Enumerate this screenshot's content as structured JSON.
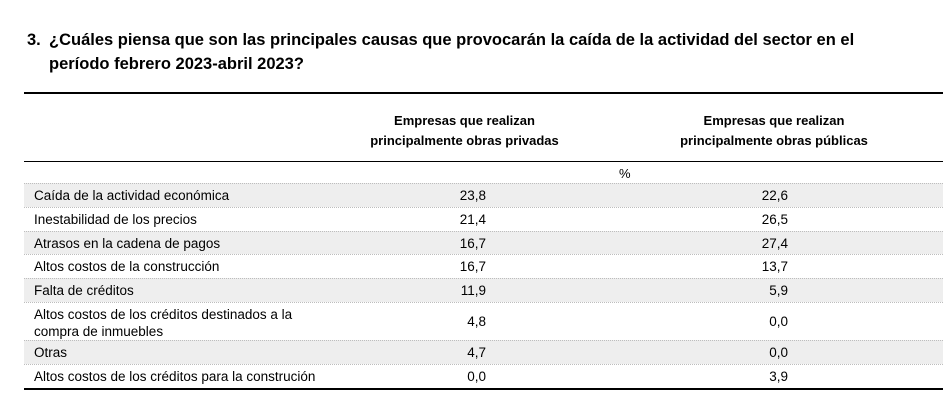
{
  "question": {
    "number": "3.",
    "line1": "¿Cuáles piensa que son las principales causas que provocarán la caída de la actividad del sector en el",
    "line2": "período febrero 2023-abril 2023?"
  },
  "table": {
    "columns": [
      {
        "line1": "Empresas que realizan",
        "line2": "principalmente obras privadas"
      },
      {
        "line1": "Empresas que realizan",
        "line2": "principalmente obras públicas"
      }
    ],
    "unit": "%",
    "rows": [
      {
        "label": "Caída de la actividad económica",
        "privadas": "23,8",
        "publicas": "22,6"
      },
      {
        "label": "Inestabilidad de los precios",
        "privadas": "21,4",
        "publicas": "26,5"
      },
      {
        "label": "Atrasos en la cadena de pagos",
        "privadas": "16,7",
        "publicas": "27,4"
      },
      {
        "label": "Altos costos de la construcción",
        "privadas": "16,7",
        "publicas": "13,7"
      },
      {
        "label": "Falta de créditos",
        "privadas": "11,9",
        "publicas": "5,9"
      },
      {
        "label_line1": "Altos costos de los créditos destinados a la",
        "label_line2": "compra de inmuebles",
        "privadas": "4,8",
        "publicas": "0,0"
      },
      {
        "label": "Otras",
        "privadas": "4,7",
        "publicas": "0,0"
      },
      {
        "label": "Altos costos de los créditos para la construción",
        "privadas": "0,0",
        "publicas": "3,9"
      }
    ]
  }
}
